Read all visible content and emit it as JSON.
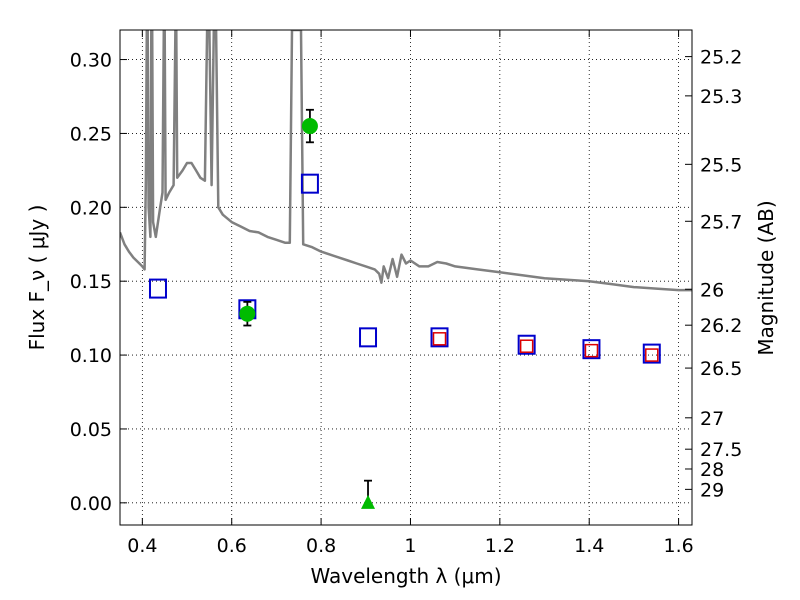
{
  "chart_data": {
    "type": "scatter",
    "xlabel": "Wavelength  λ (μm)",
    "ylabel": "Flux  F_ν  ( μJy )",
    "ylabel_right": "Magnitude (AB)",
    "xlim": [
      0.35,
      1.63
    ],
    "ylim": [
      -0.015,
      0.32
    ],
    "x_ticks": [
      0.4,
      0.6,
      0.8,
      1.0,
      1.2,
      1.4,
      1.6
    ],
    "x_tick_labels": [
      "0.4",
      "0.6",
      "0.8",
      "1",
      "1.2",
      "1.4",
      "1.6"
    ],
    "y_ticks": [
      0.0,
      0.05,
      0.1,
      0.15,
      0.2,
      0.25,
      0.3
    ],
    "y_tick_labels": [
      "0.00",
      "0.05",
      "0.10",
      "0.15",
      "0.20",
      "0.25",
      "0.30"
    ],
    "right_tick_labels": [
      "25.2",
      "25.3",
      "25.5",
      "25.7",
      "26",
      "26.2",
      "26.5",
      "27",
      "27.5",
      "28",
      "29"
    ],
    "grid": true,
    "colors": {
      "spectrum": "#808080",
      "model_photometry": "#0000cc",
      "observed": "#00bb00",
      "secondary_model": "#dd0000",
      "error_bar": "#000000"
    },
    "series": [
      {
        "marker": "model-square",
        "x": [
          0.435,
          0.635,
          0.775,
          0.905,
          1.065,
          1.26,
          1.405,
          1.54
        ],
        "y": [
          0.145,
          0.131,
          0.216,
          0.112,
          0.112,
          0.107,
          0.104,
          0.101
        ]
      },
      {
        "marker": "inner-square",
        "x": [
          1.065,
          1.26,
          1.405,
          1.54
        ],
        "y": [
          0.111,
          0.106,
          0.103,
          0.1
        ]
      },
      {
        "marker": "circle",
        "x": [
          0.635,
          0.775
        ],
        "y": [
          0.128,
          0.255
        ],
        "yerr": [
          0.008,
          0.011
        ]
      },
      {
        "marker": "upper-limit",
        "x": [
          0.905
        ],
        "y": [
          0.0
        ],
        "yerr": [
          0.015
        ]
      }
    ],
    "spectrum": [
      [
        0.35,
        0.183
      ],
      [
        0.36,
        0.175
      ],
      [
        0.37,
        0.17
      ],
      [
        0.38,
        0.166
      ],
      [
        0.39,
        0.163
      ],
      [
        0.4,
        0.16
      ],
      [
        0.405,
        0.158
      ],
      [
        0.408,
        0.22
      ],
      [
        0.41,
        0.32
      ],
      [
        0.412,
        0.32
      ],
      [
        0.414,
        0.2
      ],
      [
        0.418,
        0.18
      ],
      [
        0.42,
        0.32
      ],
      [
        0.422,
        0.32
      ],
      [
        0.424,
        0.19
      ],
      [
        0.43,
        0.18
      ],
      [
        0.435,
        0.19
      ],
      [
        0.44,
        0.2
      ],
      [
        0.445,
        0.21
      ],
      [
        0.448,
        0.32
      ],
      [
        0.45,
        0.32
      ],
      [
        0.452,
        0.205
      ],
      [
        0.46,
        0.21
      ],
      [
        0.47,
        0.215
      ],
      [
        0.474,
        0.32
      ],
      [
        0.476,
        0.32
      ],
      [
        0.478,
        0.22
      ],
      [
        0.49,
        0.225
      ],
      [
        0.5,
        0.23
      ],
      [
        0.51,
        0.23
      ],
      [
        0.52,
        0.225
      ],
      [
        0.53,
        0.22
      ],
      [
        0.54,
        0.218
      ],
      [
        0.545,
        0.32
      ],
      [
        0.55,
        0.32
      ],
      [
        0.555,
        0.215
      ],
      [
        0.56,
        0.32
      ],
      [
        0.565,
        0.32
      ],
      [
        0.57,
        0.2
      ],
      [
        0.58,
        0.195
      ],
      [
        0.6,
        0.19
      ],
      [
        0.62,
        0.187
      ],
      [
        0.64,
        0.184
      ],
      [
        0.66,
        0.183
      ],
      [
        0.68,
        0.18
      ],
      [
        0.7,
        0.178
      ],
      [
        0.72,
        0.176
      ],
      [
        0.73,
        0.176
      ],
      [
        0.735,
        0.32
      ],
      [
        0.745,
        0.32
      ],
      [
        0.75,
        0.32
      ],
      [
        0.755,
        0.32
      ],
      [
        0.76,
        0.175
      ],
      [
        0.78,
        0.173
      ],
      [
        0.8,
        0.17
      ],
      [
        0.82,
        0.168
      ],
      [
        0.84,
        0.166
      ],
      [
        0.86,
        0.164
      ],
      [
        0.88,
        0.162
      ],
      [
        0.9,
        0.16
      ],
      [
        0.92,
        0.158
      ],
      [
        0.93,
        0.155
      ],
      [
        0.935,
        0.149
      ],
      [
        0.94,
        0.16
      ],
      [
        0.95,
        0.152
      ],
      [
        0.96,
        0.165
      ],
      [
        0.97,
        0.153
      ],
      [
        0.98,
        0.168
      ],
      [
        0.99,
        0.162
      ],
      [
        1.0,
        0.164
      ],
      [
        1.02,
        0.16
      ],
      [
        1.04,
        0.16
      ],
      [
        1.06,
        0.163
      ],
      [
        1.08,
        0.162
      ],
      [
        1.1,
        0.16
      ],
      [
        1.15,
        0.158
      ],
      [
        1.2,
        0.156
      ],
      [
        1.25,
        0.154
      ],
      [
        1.3,
        0.152
      ],
      [
        1.35,
        0.151
      ],
      [
        1.4,
        0.15
      ],
      [
        1.45,
        0.148
      ],
      [
        1.5,
        0.146
      ],
      [
        1.55,
        0.145
      ],
      [
        1.6,
        0.144
      ],
      [
        1.63,
        0.144
      ]
    ]
  }
}
